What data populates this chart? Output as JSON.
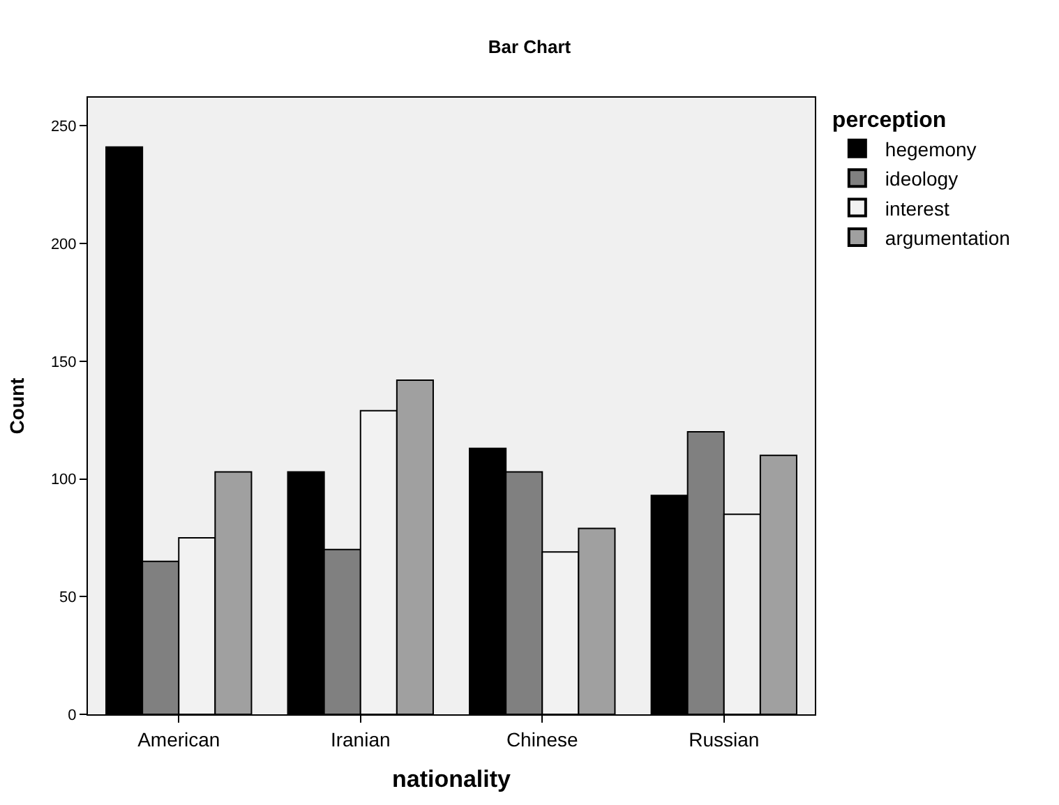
{
  "chart_data": {
    "type": "bar",
    "title": "Bar Chart",
    "xlabel": "nationality",
    "ylabel": "Count",
    "legend_title": "perception",
    "categories": [
      "American",
      "Iranian",
      "Chinese",
      "Russian"
    ],
    "series": [
      {
        "name": "hegemony",
        "color": "#000000",
        "values": [
          241,
          103,
          113,
          93
        ]
      },
      {
        "name": "ideology",
        "color": "#808080",
        "values": [
          65,
          70,
          103,
          120
        ]
      },
      {
        "name": "interest",
        "color": "#f2f2f2",
        "values": [
          75,
          129,
          69,
          85
        ]
      },
      {
        "name": "argumentation",
        "color": "#a0a0a0",
        "values": [
          103,
          142,
          79,
          110
        ]
      }
    ],
    "ylim": [
      0,
      262
    ],
    "yticks": [
      0,
      50,
      100,
      150,
      200,
      250
    ],
    "grid": false,
    "legend": "top right"
  }
}
